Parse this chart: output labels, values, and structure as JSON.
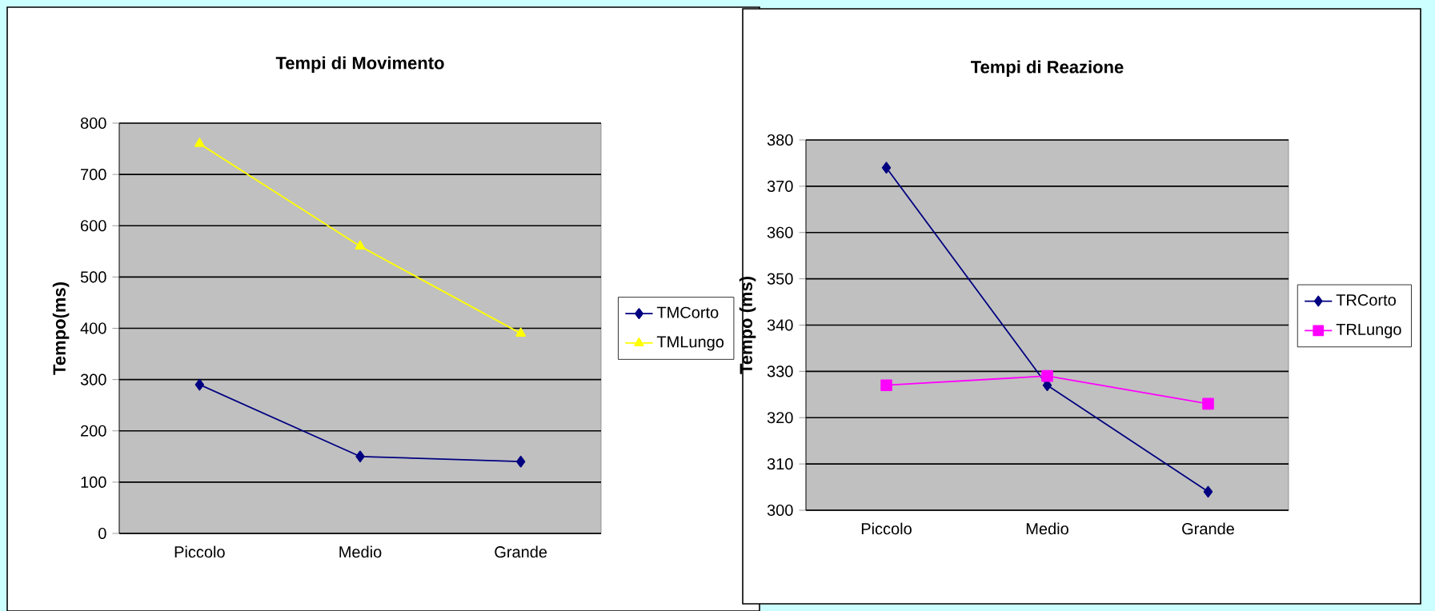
{
  "chart_data": [
    {
      "type": "line",
      "title": "Tempi di  Movimento",
      "ylabel": "Tempo(ms)",
      "categories": [
        "Piccolo",
        "Medio",
        "Grande"
      ],
      "ylim": [
        0,
        800
      ],
      "yticks": [
        0,
        100,
        200,
        300,
        400,
        500,
        600,
        700,
        800
      ],
      "grid": "y",
      "legend": "right",
      "series": [
        {
          "name": "TMCorto",
          "color": "#000080",
          "marker": "diamond",
          "values": [
            290,
            150,
            140
          ]
        },
        {
          "name": "TMLungo",
          "color": "#ffff00",
          "marker": "triangle",
          "values": [
            760,
            560,
            390
          ]
        }
      ]
    },
    {
      "type": "line",
      "title": "Tempi di Reazione",
      "ylabel": "Tempo (ms)",
      "categories": [
        "Piccolo",
        "Medio",
        "Grande"
      ],
      "ylim": [
        300,
        380
      ],
      "yticks": [
        300,
        310,
        320,
        330,
        340,
        350,
        360,
        370,
        380
      ],
      "grid": "y",
      "legend": "right",
      "series": [
        {
          "name": "TRCorto",
          "color": "#000080",
          "marker": "diamond",
          "values": [
            374,
            327,
            304
          ]
        },
        {
          "name": "TRLungo",
          "color": "#ff00ff",
          "marker": "square",
          "values": [
            327,
            329,
            323
          ]
        }
      ]
    }
  ]
}
